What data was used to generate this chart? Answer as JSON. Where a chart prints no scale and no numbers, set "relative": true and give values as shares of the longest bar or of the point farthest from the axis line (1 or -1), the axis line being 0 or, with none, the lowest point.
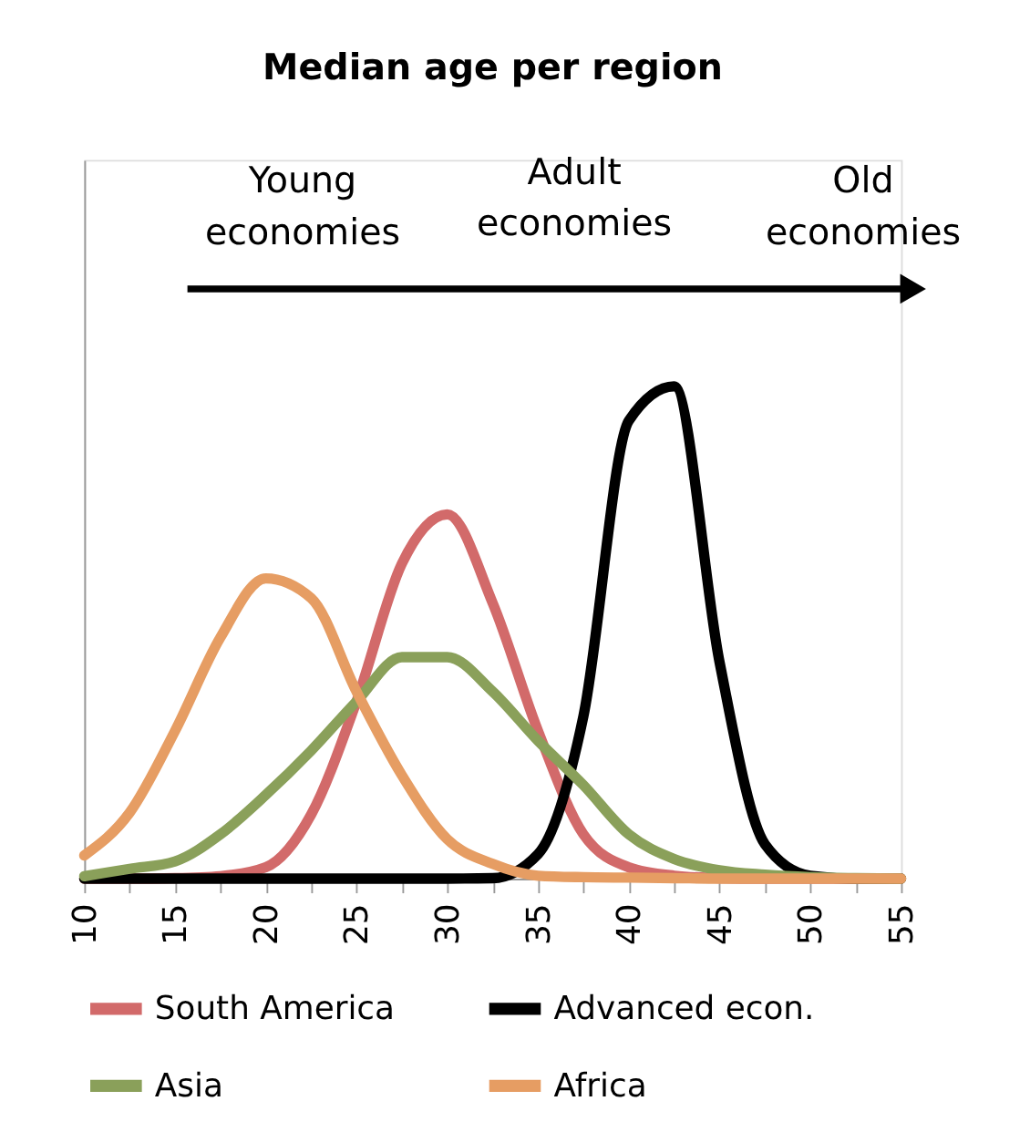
{
  "chart_data": {
    "type": "line",
    "title": "Median age per region",
    "relative": true,
    "x": [
      10,
      12.5,
      15,
      17.5,
      20,
      22.5,
      25,
      27.5,
      30,
      32.5,
      35,
      37.5,
      40,
      42.5,
      45,
      47.5,
      50,
      52.5,
      55
    ],
    "xlim": [
      10,
      55
    ],
    "xticks": [
      10,
      {
        "value": 12.5,
        "label": null
      },
      15,
      {
        "value": 17.5,
        "label": null
      },
      20,
      {
        "value": 22.5,
        "label": null
      },
      25,
      {
        "value": 27.5,
        "label": null
      },
      30,
      {
        "value": 32.5,
        "label": null
      },
      35,
      {
        "value": 37.5,
        "label": null
      },
      40,
      {
        "value": 42.5,
        "label": null
      },
      45,
      {
        "value": 47.5,
        "label": null
      },
      50,
      {
        "value": 52.5,
        "label": null
      },
      55
    ],
    "series": [
      {
        "name": "South America",
        "color": "#d26a6a",
        "values": [
          0,
          0,
          0.001,
          0.005,
          0.023,
          0.13,
          0.36,
          0.64,
          0.74,
          0.56,
          0.3,
          0.09,
          0.023,
          0.006,
          0.001,
          0,
          0,
          0,
          0
        ]
      },
      {
        "name": "Advanced econ.",
        "color": "#000000",
        "values": [
          0,
          0,
          0,
          0,
          0,
          0,
          0,
          0,
          0,
          0.001,
          0.05,
          0.33,
          0.93,
          1.0,
          0.44,
          0.07,
          0.006,
          0,
          0
        ]
      },
      {
        "name": "Asia",
        "color": "#8aa05a",
        "values": [
          0.005,
          0.02,
          0.035,
          0.09,
          0.17,
          0.26,
          0.36,
          0.45,
          0.45,
          0.38,
          0.28,
          0.19,
          0.09,
          0.04,
          0.017,
          0.008,
          0.003,
          0.001,
          0
        ]
      },
      {
        "name": "Africa",
        "color": "#e69d63",
        "values": [
          0.047,
          0.134,
          0.3,
          0.49,
          0.61,
          0.57,
          0.38,
          0.21,
          0.08,
          0.03,
          0.006,
          0.003,
          0.002,
          0.001,
          0,
          0,
          0,
          0,
          0
        ]
      }
    ],
    "annotations": [
      "Young economies",
      "Adult economies",
      "Old economies"
    ],
    "legend": "bottom",
    "grid": false,
    "marker": "none",
    "line_style": "solid"
  }
}
